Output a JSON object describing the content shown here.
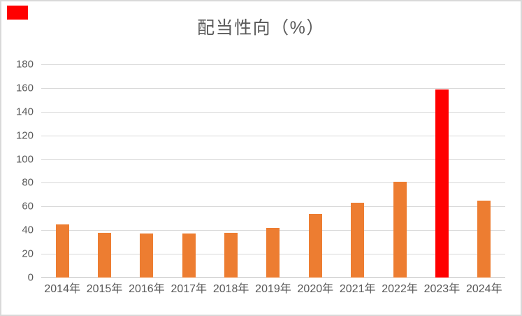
{
  "window": {
    "background": "#ffffff",
    "border_color": "#d9d9d9"
  },
  "corner_marker": {
    "color": "#ff0000"
  },
  "chart_data": {
    "type": "bar",
    "title": "配当性向（%）",
    "categories": [
      "2014年",
      "2015年",
      "2016年",
      "2017年",
      "2018年",
      "2019年",
      "2020年",
      "2021年",
      "2022年",
      "2023年",
      "2024年"
    ],
    "values": [
      45,
      38,
      37,
      37,
      38,
      42,
      54,
      63,
      81,
      159,
      65
    ],
    "highlight_index": 9,
    "highlight_category": "2023年",
    "ylim": [
      0,
      180
    ],
    "ytick_step": 20,
    "ytick_labels": [
      "180",
      "160",
      "140",
      "120",
      "100",
      "80",
      "60",
      "40",
      "20",
      "0"
    ],
    "grid": true,
    "legend": "none",
    "xlabel": "",
    "ylabel": "",
    "colors": {
      "bar": "#ed7d31",
      "highlight": "#ff0000",
      "gridline": "#d9d9d9",
      "axis_line": "#bfbfbf",
      "text": "#595959"
    }
  }
}
